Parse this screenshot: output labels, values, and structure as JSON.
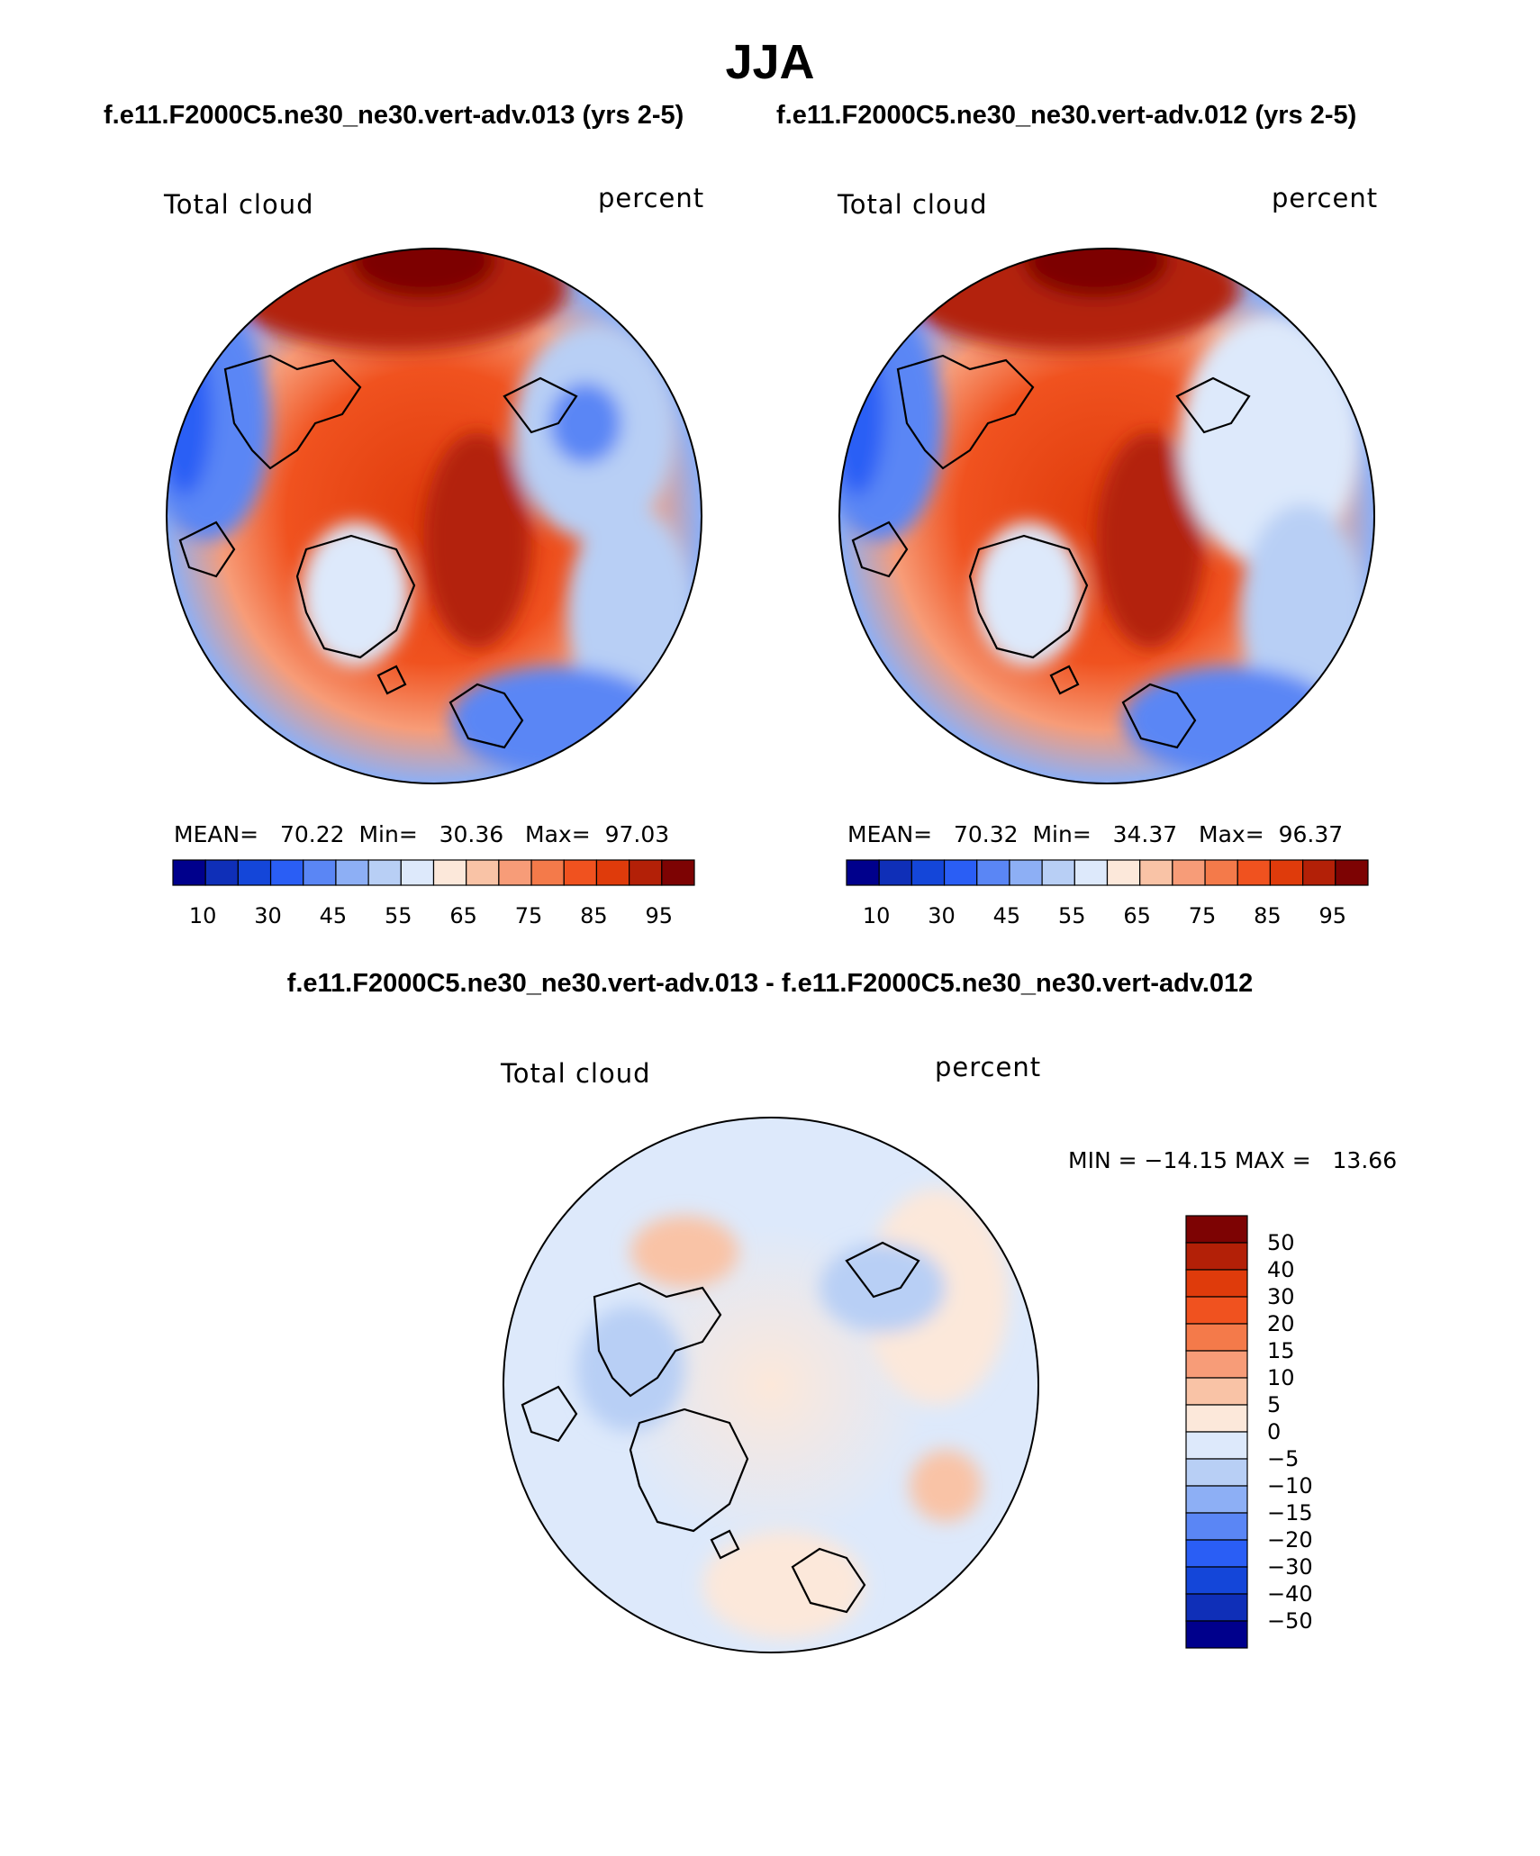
{
  "title": "JJA",
  "subtitles": {
    "left": "f.e11.F2000C5.ne30_ne30.vert-adv.013 (yrs 2-5)",
    "right": "f.e11.F2000C5.ne30_ne30.vert-adv.012 (yrs 2-5)",
    "diff": "f.e11.F2000C5.ne30_ne30.vert-adv.013 - f.e11.F2000C5.ne30_ne30.vert-adv.012"
  },
  "colors": {
    "abs_scale": [
      "#00008c",
      "#0f2fb8",
      "#1446d9",
      "#2a5ef5",
      "#5a86f5",
      "#8daff5",
      "#b8cff5",
      "#dde9fb",
      "#fce8da",
      "#f9c3a6",
      "#f79c78",
      "#f47a4a",
      "#f0521f",
      "#df3b0b",
      "#b32007",
      "#7d0303"
    ],
    "diff_scale": [
      "#00008c",
      "#0f2fb8",
      "#1446d9",
      "#2a5ef5",
      "#5a86f5",
      "#8daff5",
      "#b8cff5",
      "#dde9fb",
      "#fce8da",
      "#f9c3a6",
      "#f79c78",
      "#f47a4a",
      "#f0521f",
      "#df3b0b",
      "#b32007",
      "#7d0303"
    ]
  },
  "chart_data": [
    {
      "type": "heatmap",
      "projection": "north-polar-stereographic",
      "variable_label": "Total cloud",
      "units_label": "percent",
      "stats": {
        "mean_label": "MEAN=",
        "mean": "70.22",
        "min_label": "Min=",
        "min": "30.36",
        "max_label": "Max=",
        "max": "97.03"
      },
      "colorbar": {
        "orientation": "horizontal",
        "boundaries": [
          10,
          20,
          30,
          40,
          45,
          50,
          55,
          60,
          65,
          70,
          75,
          80,
          85,
          90,
          95
        ],
        "tick_labels": [
          "10",
          "30",
          "45",
          "55",
          "65",
          "75",
          "85",
          "95"
        ]
      }
    },
    {
      "type": "heatmap",
      "projection": "north-polar-stereographic",
      "variable_label": "Total cloud",
      "units_label": "percent",
      "stats": {
        "mean_label": "MEAN=",
        "mean": "70.32",
        "min_label": "Min=",
        "min": "34.37",
        "max_label": "Max=",
        "max": "96.37"
      },
      "colorbar": {
        "orientation": "horizontal",
        "boundaries": [
          10,
          20,
          30,
          40,
          45,
          50,
          55,
          60,
          65,
          70,
          75,
          80,
          85,
          90,
          95
        ],
        "tick_labels": [
          "10",
          "30",
          "45",
          "55",
          "65",
          "75",
          "85",
          "95"
        ]
      }
    },
    {
      "type": "heatmap",
      "projection": "north-polar-stereographic",
      "variable_label": "Total cloud",
      "units_label": "percent",
      "stats": {
        "min_label": "MIN =",
        "min": "−14.15",
        "max_label": "MAX =",
        "max": "13.66"
      },
      "colorbar": {
        "orientation": "vertical",
        "boundaries": [
          50,
          40,
          30,
          20,
          15,
          10,
          5,
          0,
          -5,
          -10,
          -15,
          -20,
          -30,
          -40,
          -50
        ],
        "tick_labels": [
          "50",
          "40",
          "30",
          "20",
          "15",
          "10",
          "5",
          "0",
          "−5",
          "−10",
          "−15",
          "−20",
          "−30",
          "−40",
          "−50"
        ]
      }
    }
  ]
}
